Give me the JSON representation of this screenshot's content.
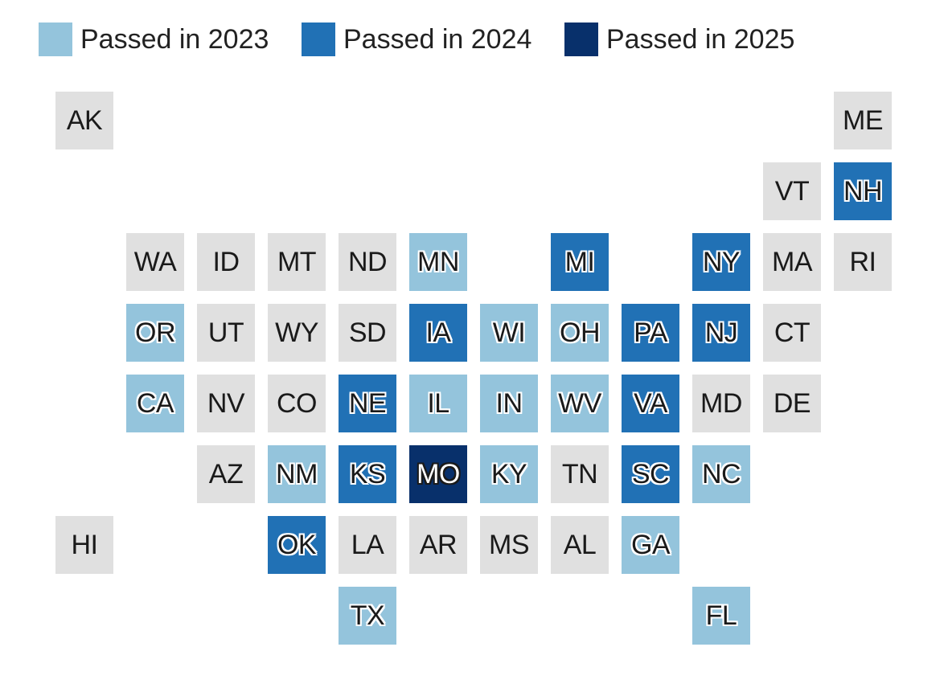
{
  "legend": [
    {
      "key": "2023",
      "label": "Passed in 2023",
      "color": "#94c4dc"
    },
    {
      "key": "2024",
      "label": "Passed in 2024",
      "color": "#2171b5"
    },
    {
      "key": "2025",
      "label": "Passed in 2025",
      "color": "#08306b"
    }
  ],
  "default_color": "#e0e0e0",
  "states": [
    {
      "abbr": "AK",
      "row": 0,
      "col": 0,
      "status": "none"
    },
    {
      "abbr": "ME",
      "row": 0,
      "col": 11,
      "status": "none"
    },
    {
      "abbr": "VT",
      "row": 1,
      "col": 10,
      "status": "none"
    },
    {
      "abbr": "NH",
      "row": 1,
      "col": 11,
      "status": "2024"
    },
    {
      "abbr": "WA",
      "row": 2,
      "col": 1,
      "status": "none"
    },
    {
      "abbr": "ID",
      "row": 2,
      "col": 2,
      "status": "none"
    },
    {
      "abbr": "MT",
      "row": 2,
      "col": 3,
      "status": "none"
    },
    {
      "abbr": "ND",
      "row": 2,
      "col": 4,
      "status": "none"
    },
    {
      "abbr": "MN",
      "row": 2,
      "col": 5,
      "status": "2023"
    },
    {
      "abbr": "MI",
      "row": 2,
      "col": 7,
      "status": "2024"
    },
    {
      "abbr": "NY",
      "row": 2,
      "col": 9,
      "status": "2024"
    },
    {
      "abbr": "MA",
      "row": 2,
      "col": 10,
      "status": "none"
    },
    {
      "abbr": "RI",
      "row": 2,
      "col": 11,
      "status": "none"
    },
    {
      "abbr": "OR",
      "row": 3,
      "col": 1,
      "status": "2023"
    },
    {
      "abbr": "UT",
      "row": 3,
      "col": 2,
      "status": "none"
    },
    {
      "abbr": "WY",
      "row": 3,
      "col": 3,
      "status": "none"
    },
    {
      "abbr": "SD",
      "row": 3,
      "col": 4,
      "status": "none"
    },
    {
      "abbr": "IA",
      "row": 3,
      "col": 5,
      "status": "2024"
    },
    {
      "abbr": "WI",
      "row": 3,
      "col": 6,
      "status": "2023"
    },
    {
      "abbr": "OH",
      "row": 3,
      "col": 7,
      "status": "2023"
    },
    {
      "abbr": "PA",
      "row": 3,
      "col": 8,
      "status": "2024"
    },
    {
      "abbr": "NJ",
      "row": 3,
      "col": 9,
      "status": "2024"
    },
    {
      "abbr": "CT",
      "row": 3,
      "col": 10,
      "status": "none"
    },
    {
      "abbr": "CA",
      "row": 4,
      "col": 1,
      "status": "2023"
    },
    {
      "abbr": "NV",
      "row": 4,
      "col": 2,
      "status": "none"
    },
    {
      "abbr": "CO",
      "row": 4,
      "col": 3,
      "status": "none"
    },
    {
      "abbr": "NE",
      "row": 4,
      "col": 4,
      "status": "2024"
    },
    {
      "abbr": "IL",
      "row": 4,
      "col": 5,
      "status": "2023"
    },
    {
      "abbr": "IN",
      "row": 4,
      "col": 6,
      "status": "2023"
    },
    {
      "abbr": "WV",
      "row": 4,
      "col": 7,
      "status": "2023"
    },
    {
      "abbr": "VA",
      "row": 4,
      "col": 8,
      "status": "2024"
    },
    {
      "abbr": "MD",
      "row": 4,
      "col": 9,
      "status": "none"
    },
    {
      "abbr": "DE",
      "row": 4,
      "col": 10,
      "status": "none"
    },
    {
      "abbr": "AZ",
      "row": 5,
      "col": 2,
      "status": "none"
    },
    {
      "abbr": "NM",
      "row": 5,
      "col": 3,
      "status": "2023"
    },
    {
      "abbr": "KS",
      "row": 5,
      "col": 4,
      "status": "2024"
    },
    {
      "abbr": "MO",
      "row": 5,
      "col": 5,
      "status": "2025"
    },
    {
      "abbr": "KY",
      "row": 5,
      "col": 6,
      "status": "2023"
    },
    {
      "abbr": "TN",
      "row": 5,
      "col": 7,
      "status": "none"
    },
    {
      "abbr": "SC",
      "row": 5,
      "col": 8,
      "status": "2024"
    },
    {
      "abbr": "NC",
      "row": 5,
      "col": 9,
      "status": "2023"
    },
    {
      "abbr": "HI",
      "row": 6,
      "col": 0,
      "status": "none"
    },
    {
      "abbr": "OK",
      "row": 6,
      "col": 3,
      "status": "2024"
    },
    {
      "abbr": "LA",
      "row": 6,
      "col": 4,
      "status": "none"
    },
    {
      "abbr": "AR",
      "row": 6,
      "col": 5,
      "status": "none"
    },
    {
      "abbr": "MS",
      "row": 6,
      "col": 6,
      "status": "none"
    },
    {
      "abbr": "AL",
      "row": 6,
      "col": 7,
      "status": "none"
    },
    {
      "abbr": "GA",
      "row": 6,
      "col": 8,
      "status": "2023"
    },
    {
      "abbr": "TX",
      "row": 7,
      "col": 4,
      "status": "2023"
    },
    {
      "abbr": "FL",
      "row": 7,
      "col": 9,
      "status": "2023"
    }
  ]
}
